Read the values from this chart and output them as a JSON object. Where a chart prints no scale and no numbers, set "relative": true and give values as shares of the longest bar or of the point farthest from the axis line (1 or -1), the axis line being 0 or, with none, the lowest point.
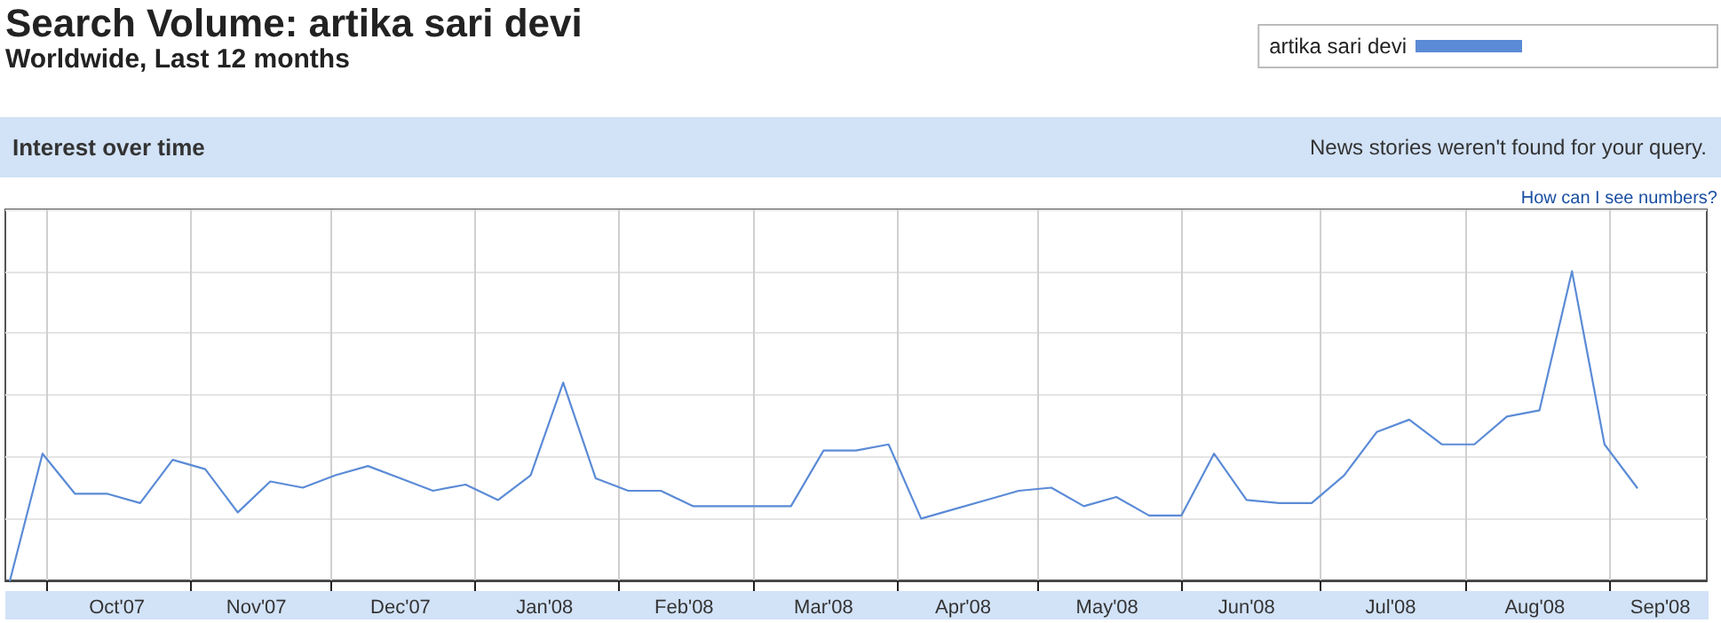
{
  "chart_data": {
    "type": "line",
    "title": "Search Volume: artika sari devi",
    "subtitle": "Worldwide, Last 12 months",
    "annotations": [
      "Interest over time",
      "News stories weren't found for your query.",
      "How can I see numbers?"
    ],
    "relative": true,
    "grid": true,
    "legend": "top right",
    "marker": "none",
    "line_style": "solid",
    "x": [
      "2007-09-23",
      "2007-09-30",
      "2007-10-07",
      "2007-10-14",
      "2007-10-21",
      "2007-10-28",
      "2007-11-04",
      "2007-11-11",
      "2007-11-18",
      "2007-11-25",
      "2007-12-02",
      "2007-12-09",
      "2007-12-16",
      "2007-12-23",
      "2007-12-30",
      "2008-01-06",
      "2008-01-13",
      "2008-01-20",
      "2008-01-27",
      "2008-02-03",
      "2008-02-10",
      "2008-02-17",
      "2008-02-24",
      "2008-03-02",
      "2008-03-09",
      "2008-03-16",
      "2008-03-23",
      "2008-03-30",
      "2008-04-06",
      "2008-04-13",
      "2008-04-20",
      "2008-04-27",
      "2008-05-04",
      "2008-05-11",
      "2008-05-18",
      "2008-05-25",
      "2008-06-01",
      "2008-06-08",
      "2008-06-15",
      "2008-06-22",
      "2008-06-29",
      "2008-07-06",
      "2008-07-13",
      "2008-07-20",
      "2008-07-27",
      "2008-08-03",
      "2008-08-10",
      "2008-08-17",
      "2008-08-24",
      "2008-08-31",
      "2008-09-07"
    ],
    "xlim": [
      "2007-09-22",
      "2008-09-22"
    ],
    "xticks": [
      {
        "value": "2007-10-01",
        "label": null
      },
      {
        "value": "2007-11-01",
        "label": null
      },
      {
        "value": "2007-12-01",
        "label": null
      },
      {
        "value": "2008-01-01",
        "label": null
      },
      {
        "value": "2008-02-01",
        "label": null
      },
      {
        "value": "2008-03-01",
        "label": null
      },
      {
        "value": "2008-04-01",
        "label": null
      },
      {
        "value": "2008-05-01",
        "label": null
      },
      {
        "value": "2008-06-01",
        "label": null
      },
      {
        "value": "2008-07-01",
        "label": null
      },
      {
        "value": "2008-08-01",
        "label": null
      },
      {
        "value": "2008-09-01",
        "label": null
      },
      {
        "value": "2007-10-16",
        "label": "Oct'07"
      },
      {
        "value": "2007-11-15",
        "label": "Nov'07"
      },
      {
        "value": "2007-12-16",
        "label": "Dec'07"
      },
      {
        "value": "2008-01-16",
        "label": "Jan'08"
      },
      {
        "value": "2008-02-15",
        "label": "Feb'08"
      },
      {
        "value": "2008-03-16",
        "label": "Mar'08"
      },
      {
        "value": "2008-04-15",
        "label": "Apr'08"
      },
      {
        "value": "2008-05-16",
        "label": "May'08"
      },
      {
        "value": "2008-06-15",
        "label": "Jun'08"
      },
      {
        "value": "2008-07-16",
        "label": "Jul'08"
      },
      {
        "value": "2008-08-16",
        "label": "Aug'08"
      },
      {
        "value": "2008-09-12",
        "label": "Sep'08"
      }
    ],
    "series": [
      {
        "name": "artika sari devi",
        "color": "#5b8bd6",
        "values": [
          0,
          0.41,
          0.28,
          0.28,
          0.25,
          0.39,
          0.36,
          0.22,
          0.32,
          0.3,
          0.34,
          0.37,
          0.33,
          0.29,
          0.31,
          0.26,
          0.34,
          0.64,
          0.33,
          0.29,
          0.29,
          0.24,
          0.24,
          0.24,
          0.24,
          0.42,
          0.42,
          0.44,
          0.2,
          0.23,
          0.26,
          0.29,
          0.3,
          0.24,
          0.27,
          0.21,
          0.21,
          0.41,
          0.26,
          0.25,
          0.25,
          0.34,
          0.48,
          0.52,
          0.44,
          0.44,
          0.53,
          0.55,
          1,
          0.44,
          0.3
        ]
      }
    ]
  }
}
